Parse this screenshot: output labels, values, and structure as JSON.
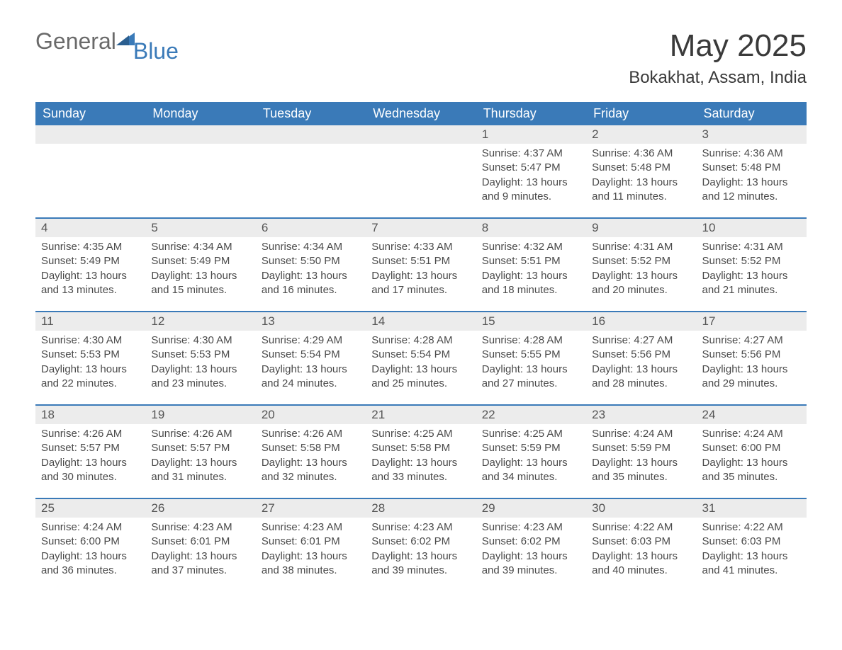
{
  "brand": {
    "word1": "General",
    "word2": "Blue"
  },
  "title": "May 2025",
  "location": "Bokakhat, Assam, India",
  "colors": {
    "header_bg": "#3a7ab8",
    "header_text": "#ffffff",
    "row_divider": "#3a7ab8",
    "daynum_bg": "#ececec",
    "body_text": "#4a4a4a",
    "title_text": "#3a3a3a",
    "logo_gray": "#6a6a6a",
    "logo_blue": "#3a7ab8",
    "page_bg": "#ffffff"
  },
  "day_names": [
    "Sunday",
    "Monday",
    "Tuesday",
    "Wednesday",
    "Thursday",
    "Friday",
    "Saturday"
  ],
  "weeks": [
    [
      null,
      null,
      null,
      null,
      {
        "n": "1",
        "sunrise": "4:37 AM",
        "sunset": "5:47 PM",
        "dl_h": "13",
        "dl_m": "9"
      },
      {
        "n": "2",
        "sunrise": "4:36 AM",
        "sunset": "5:48 PM",
        "dl_h": "13",
        "dl_m": "11"
      },
      {
        "n": "3",
        "sunrise": "4:36 AM",
        "sunset": "5:48 PM",
        "dl_h": "13",
        "dl_m": "12"
      }
    ],
    [
      {
        "n": "4",
        "sunrise": "4:35 AM",
        "sunset": "5:49 PM",
        "dl_h": "13",
        "dl_m": "13"
      },
      {
        "n": "5",
        "sunrise": "4:34 AM",
        "sunset": "5:49 PM",
        "dl_h": "13",
        "dl_m": "15"
      },
      {
        "n": "6",
        "sunrise": "4:34 AM",
        "sunset": "5:50 PM",
        "dl_h": "13",
        "dl_m": "16"
      },
      {
        "n": "7",
        "sunrise": "4:33 AM",
        "sunset": "5:51 PM",
        "dl_h": "13",
        "dl_m": "17"
      },
      {
        "n": "8",
        "sunrise": "4:32 AM",
        "sunset": "5:51 PM",
        "dl_h": "13",
        "dl_m": "18"
      },
      {
        "n": "9",
        "sunrise": "4:31 AM",
        "sunset": "5:52 PM",
        "dl_h": "13",
        "dl_m": "20"
      },
      {
        "n": "10",
        "sunrise": "4:31 AM",
        "sunset": "5:52 PM",
        "dl_h": "13",
        "dl_m": "21"
      }
    ],
    [
      {
        "n": "11",
        "sunrise": "4:30 AM",
        "sunset": "5:53 PM",
        "dl_h": "13",
        "dl_m": "22"
      },
      {
        "n": "12",
        "sunrise": "4:30 AM",
        "sunset": "5:53 PM",
        "dl_h": "13",
        "dl_m": "23"
      },
      {
        "n": "13",
        "sunrise": "4:29 AM",
        "sunset": "5:54 PM",
        "dl_h": "13",
        "dl_m": "24"
      },
      {
        "n": "14",
        "sunrise": "4:28 AM",
        "sunset": "5:54 PM",
        "dl_h": "13",
        "dl_m": "25"
      },
      {
        "n": "15",
        "sunrise": "4:28 AM",
        "sunset": "5:55 PM",
        "dl_h": "13",
        "dl_m": "27"
      },
      {
        "n": "16",
        "sunrise": "4:27 AM",
        "sunset": "5:56 PM",
        "dl_h": "13",
        "dl_m": "28"
      },
      {
        "n": "17",
        "sunrise": "4:27 AM",
        "sunset": "5:56 PM",
        "dl_h": "13",
        "dl_m": "29"
      }
    ],
    [
      {
        "n": "18",
        "sunrise": "4:26 AM",
        "sunset": "5:57 PM",
        "dl_h": "13",
        "dl_m": "30"
      },
      {
        "n": "19",
        "sunrise": "4:26 AM",
        "sunset": "5:57 PM",
        "dl_h": "13",
        "dl_m": "31"
      },
      {
        "n": "20",
        "sunrise": "4:26 AM",
        "sunset": "5:58 PM",
        "dl_h": "13",
        "dl_m": "32"
      },
      {
        "n": "21",
        "sunrise": "4:25 AM",
        "sunset": "5:58 PM",
        "dl_h": "13",
        "dl_m": "33"
      },
      {
        "n": "22",
        "sunrise": "4:25 AM",
        "sunset": "5:59 PM",
        "dl_h": "13",
        "dl_m": "34"
      },
      {
        "n": "23",
        "sunrise": "4:24 AM",
        "sunset": "5:59 PM",
        "dl_h": "13",
        "dl_m": "35"
      },
      {
        "n": "24",
        "sunrise": "4:24 AM",
        "sunset": "6:00 PM",
        "dl_h": "13",
        "dl_m": "35"
      }
    ],
    [
      {
        "n": "25",
        "sunrise": "4:24 AM",
        "sunset": "6:00 PM",
        "dl_h": "13",
        "dl_m": "36"
      },
      {
        "n": "26",
        "sunrise": "4:23 AM",
        "sunset": "6:01 PM",
        "dl_h": "13",
        "dl_m": "37"
      },
      {
        "n": "27",
        "sunrise": "4:23 AM",
        "sunset": "6:01 PM",
        "dl_h": "13",
        "dl_m": "38"
      },
      {
        "n": "28",
        "sunrise": "4:23 AM",
        "sunset": "6:02 PM",
        "dl_h": "13",
        "dl_m": "39"
      },
      {
        "n": "29",
        "sunrise": "4:23 AM",
        "sunset": "6:02 PM",
        "dl_h": "13",
        "dl_m": "39"
      },
      {
        "n": "30",
        "sunrise": "4:22 AM",
        "sunset": "6:03 PM",
        "dl_h": "13",
        "dl_m": "40"
      },
      {
        "n": "31",
        "sunrise": "4:22 AM",
        "sunset": "6:03 PM",
        "dl_h": "13",
        "dl_m": "41"
      }
    ]
  ],
  "labels": {
    "sunrise": "Sunrise: ",
    "sunset": "Sunset: ",
    "daylight_pre": "Daylight: ",
    "daylight_mid": " hours and ",
    "daylight_post": " minutes."
  }
}
